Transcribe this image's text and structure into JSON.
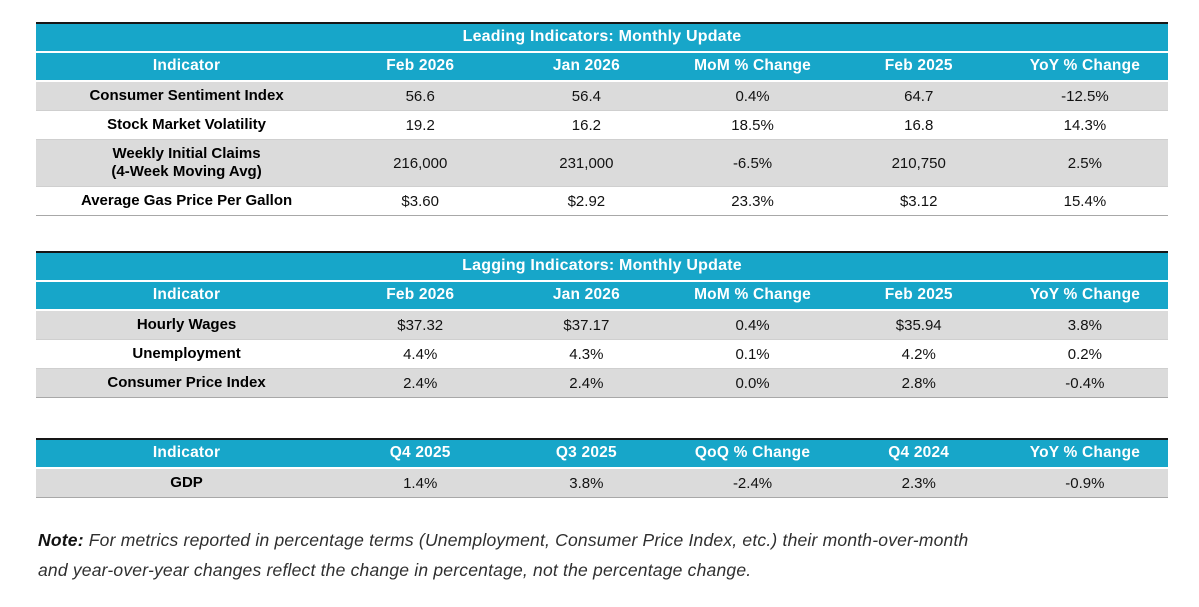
{
  "colors": {
    "accent": "#17a6c9",
    "alt_row": "#dbdbdb",
    "row_rule": "#cfcfcf",
    "table_top_border": "#161616",
    "table_bottom_border": "#a8a8a8",
    "header_text": "#ffffff",
    "body_text": "#121212"
  },
  "tables": [
    {
      "title": "Leading Indicators: Monthly Update",
      "headers": [
        "Indicator",
        "Feb 2026",
        "Jan 2026",
        "MoM % Change",
        "Feb 2025",
        "YoY % Change"
      ],
      "rows": [
        [
          "Consumer Sentiment Index",
          "56.6",
          "56.4",
          "0.4%",
          "64.7",
          "-12.5%"
        ],
        [
          "Stock Market Volatility",
          "19.2",
          "16.2",
          "18.5%",
          "16.8",
          "14.3%"
        ],
        [
          "Weekly Initial Claims\n(4-Week Moving Avg)",
          "216,000",
          "231,000",
          "-6.5%",
          "210,750",
          "2.5%"
        ],
        [
          "Average Gas Price Per Gallon",
          "$3.60",
          "$2.92",
          "23.3%",
          "$3.12",
          "15.4%"
        ]
      ]
    },
    {
      "title": "Lagging Indicators: Monthly Update",
      "headers": [
        "Indicator",
        "Feb 2026",
        "Jan 2026",
        "MoM % Change",
        "Feb 2025",
        "YoY % Change"
      ],
      "rows": [
        [
          "Hourly Wages",
          "$37.32",
          "$37.17",
          "0.4%",
          "$35.94",
          "3.8%"
        ],
        [
          "Unemployment",
          "4.4%",
          "4.3%",
          "0.1%",
          "4.2%",
          "0.2%"
        ],
        [
          "Consumer Price Index",
          "2.4%",
          "2.4%",
          "0.0%",
          "2.8%",
          "-0.4%"
        ]
      ]
    },
    {
      "title": null,
      "headers": [
        "Indicator",
        "Q4 2025",
        "Q3 2025",
        "QoQ % Change",
        "Q4 2024",
        "YoY % Change"
      ],
      "rows": [
        [
          "GDP",
          "1.4%",
          "3.8%",
          "-2.4%",
          "2.3%",
          "-0.9%"
        ]
      ]
    }
  ],
  "note": {
    "label": "Note:",
    "lines": [
      "For metrics reported in percentage terms (Unemployment, Consumer Price Index, etc.) their month-over-month",
      "and year-over-year changes reflect the change in percentage, not the percentage change."
    ]
  }
}
